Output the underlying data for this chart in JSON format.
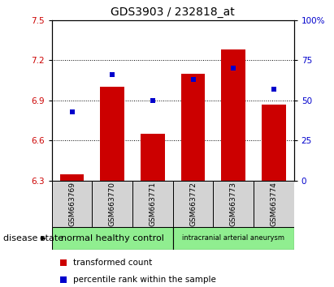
{
  "title": "GDS3903 / 232818_at",
  "samples": [
    "GSM663769",
    "GSM663770",
    "GSM663771",
    "GSM663772",
    "GSM663773",
    "GSM663774"
  ],
  "red_values": [
    6.35,
    7.0,
    6.65,
    7.1,
    7.28,
    6.87
  ],
  "blue_values": [
    43,
    66,
    50,
    63,
    70,
    57
  ],
  "ylim_left": [
    6.3,
    7.5
  ],
  "ylim_right": [
    0,
    100
  ],
  "yticks_left": [
    6.3,
    6.6,
    6.9,
    7.2,
    7.5
  ],
  "yticks_right": [
    0,
    25,
    50,
    75,
    100
  ],
  "ytick_labels_left": [
    "6.3",
    "6.6",
    "6.9",
    "7.2",
    "7.5"
  ],
  "ytick_labels_right": [
    "0",
    "25",
    "50",
    "75",
    "100%"
  ],
  "red_color": "#cc0000",
  "blue_color": "#0000cc",
  "bar_base": 6.3,
  "bar_width": 0.6,
  "group1_label": "normal healthy control",
  "group2_label": "intracranial arterial aneurysm",
  "group_color": "#90ee90",
  "sample_bg_color": "#d3d3d3",
  "disease_state_label": "disease state",
  "legend_red": "transformed count",
  "legend_blue": "percentile rank within the sample",
  "title_fontsize": 10,
  "tick_fontsize": 7.5,
  "sample_fontsize": 6.5,
  "group_fontsize1": 8,
  "group_fontsize2": 6,
  "legend_fontsize": 7.5,
  "disease_fontsize": 8
}
